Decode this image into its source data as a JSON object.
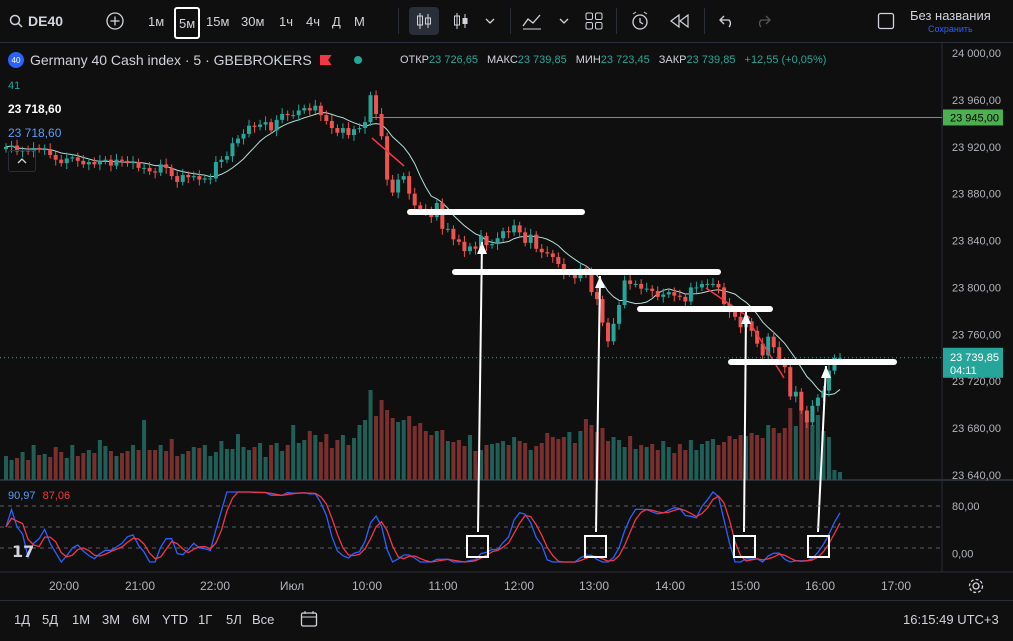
{
  "toolbar": {
    "symbol": "DE40",
    "timeframes": [
      "1м",
      "5м",
      "15м",
      "30м",
      "1ч",
      "4ч",
      "Д",
      "М"
    ],
    "active_timeframe": "5м",
    "save_title": "Без названия",
    "save_sub": "Сохранить"
  },
  "legend": {
    "badge": "40",
    "title": "Germany 40 Cash index · 5 · GBEBROKERS",
    "open_label": "ОТКР",
    "open": "23 726,65",
    "high_label": "МАКС",
    "high": "23 739,85",
    "low_label": "МИН",
    "low": "23 723,45",
    "close_label": "ЗАКР",
    "close": "23 739,85",
    "change": "+12,55 (+0,05%)",
    "line1": "41",
    "line2": "23 718,60",
    "line3": "23 718,60"
  },
  "price_axis": {
    "ticks": [
      24000,
      23960,
      23920,
      23880,
      23840,
      23800,
      23760,
      23720,
      23680,
      23640
    ],
    "labels": [
      "24 000,00",
      "23 960,00",
      "23 920,00",
      "23 880,00",
      "23 840,00",
      "23 800,00",
      "23 760,00",
      "23 720,00",
      "23 680,00",
      "23 640,00"
    ],
    "marker_green": "23 945,00",
    "marker_price": "23 739,85",
    "marker_timer": "04:11"
  },
  "stoch": {
    "k_value": "90,97",
    "d_value": "87,06",
    "axis_labels": [
      "80,00",
      "0,00"
    ]
  },
  "time_axis": {
    "labels": [
      "20:00",
      "21:00",
      "22:00",
      "Июл",
      "10:00",
      "11:00",
      "12:00",
      "13:00",
      "14:00",
      "15:00",
      "16:00",
      "17:00"
    ]
  },
  "bottom": {
    "ranges": [
      "1Д",
      "5Д",
      "1М",
      "3М",
      "6М",
      "YTD",
      "1Г",
      "5Л",
      "Все"
    ],
    "clock": "16:15:49 UTC+3"
  },
  "colors": {
    "up": "#26a69a",
    "down": "#ef5350",
    "bg": "#0f0f0f",
    "green_line": "#4caf50",
    "stoch_k": "#2962ff",
    "stoch_d": "#f23645"
  },
  "chart_data": {
    "type": "candlestick",
    "title": "Germany 40 Cash index · 5 · GBEBROKERS",
    "ylim": [
      23640,
      24005
    ],
    "green_level": 23945,
    "closes": [
      23920,
      23921,
      23916,
      23917,
      23916,
      23919,
      23918,
      23918,
      23913,
      23909,
      23906,
      23910,
      23911,
      23908,
      23905,
      23907,
      23905,
      23908,
      23909,
      23904,
      23909,
      23908,
      23906,
      23907,
      23902,
      23902,
      23899,
      23898,
      23905,
      23902,
      23895,
      23890,
      23896,
      23894,
      23895,
      23892,
      23893,
      23893,
      23907,
      23909,
      23912,
      23923,
      23927,
      23931,
      23938,
      23937,
      23939,
      23941,
      23934,
      23943,
      23948,
      23947,
      23947,
      23951,
      23953,
      23951,
      23955,
      23947,
      23942,
      23936,
      23932,
      23936,
      23930,
      23935,
      23936,
      23941,
      23964,
      23948,
      23929,
      23892,
      23881,
      23892,
      23895,
      23880,
      23870,
      23867,
      23864,
      23860,
      23872,
      23850,
      23850,
      23841,
      23839,
      23831,
      23835,
      23833,
      23844,
      23836,
      23837,
      23842,
      23848,
      23847,
      23853,
      23847,
      23838,
      23845,
      23833,
      23830,
      23829,
      23826,
      23820,
      23812,
      23812,
      23808,
      23816,
      23813,
      23796,
      23790,
      23770,
      23754,
      23769,
      23785,
      23806,
      23803,
      23803,
      23799,
      23799,
      23797,
      23792,
      23794,
      23796,
      23793,
      23792,
      23788,
      23800,
      23800,
      23803,
      23803,
      23803,
      23800,
      23786,
      23779,
      23775,
      23766,
      23771,
      23763,
      23752,
      23742,
      23758,
      23749,
      23737,
      23732,
      23707,
      23711,
      23695,
      23685,
      23699,
      23706,
      23712,
      23729,
      23740,
      23740
    ],
    "volume_scale": [
      0.24,
      0.2,
      0.22,
      0.28,
      0.2,
      0.35,
      0.25,
      0.26,
      0.23,
      0.33,
      0.28,
      0.22,
      0.35,
      0.24,
      0.27,
      0.3,
      0.27,
      0.4,
      0.34,
      0.29,
      0.24,
      0.27,
      0.29,
      0.35,
      0.3,
      0.6,
      0.3,
      0.3,
      0.35,
      0.29,
      0.41,
      0.24,
      0.26,
      0.29,
      0.33,
      0.32,
      0.35,
      0.24,
      0.28,
      0.39,
      0.31,
      0.31,
      0.46,
      0.33,
      0.3,
      0.33,
      0.37,
      0.23,
      0.35,
      0.37,
      0.29,
      0.35,
      0.55,
      0.37,
      0.4,
      0.49,
      0.45,
      0.38,
      0.46,
      0.32,
      0.4,
      0.45,
      0.35,
      0.42,
      0.55,
      0.6,
      0.9,
      0.64,
      0.8,
      0.7,
      0.62,
      0.58,
      0.6,
      0.64,
      0.54,
      0.57,
      0.49,
      0.45,
      0.49,
      0.5,
      0.39,
      0.38,
      0.4,
      0.34,
      0.45,
      0.29,
      0.3,
      0.35,
      0.36,
      0.37,
      0.39,
      0.35,
      0.43,
      0.39,
      0.37,
      0.3,
      0.34,
      0.37,
      0.47,
      0.43,
      0.41,
      0.43,
      0.48,
      0.37,
      0.49,
      0.61,
      0.55,
      0.48,
      0.52,
      0.39,
      0.43,
      0.4,
      0.33,
      0.44,
      0.31,
      0.35,
      0.33,
      0.36,
      0.3,
      0.39,
      0.33,
      0.27,
      0.36,
      0.3,
      0.4,
      0.3,
      0.36,
      0.39,
      0.41,
      0.35,
      0.38,
      0.44,
      0.41,
      0.45,
      0.44,
      0.47,
      0.45,
      0.42,
      0.55,
      0.52,
      0.47,
      0.52,
      0.72,
      0.54,
      0.73,
      0.69,
      0.55,
      0.65,
      0.49,
      0.43,
      0.1,
      0.08
    ]
  }
}
